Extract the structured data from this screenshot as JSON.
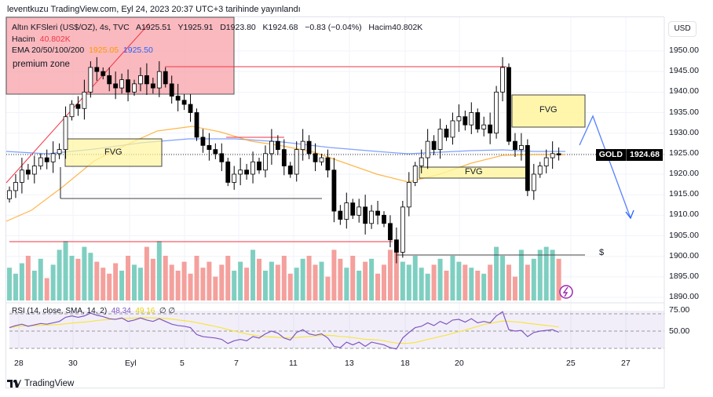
{
  "header": {
    "published": "leventkuzu TradingView.com, Eyl 24, 2023 20:37 UTC+3 tarihinde yayınlandı"
  },
  "legend": {
    "symbol": "Altın KFSleri (US$/OZ), 4s, TVC",
    "open": "A1925.51",
    "high": "Y1925.91",
    "low": "D1923.80",
    "close": "K1924.68",
    "change": "−0.83 (−0.04%)",
    "volume": "Hacim40.802K",
    "volume_label": "Hacim",
    "volume_value": "40.802K",
    "ema_label": "EMA 20/50/100/200",
    "ema_a": "1925.05",
    "ema_b": "1925.50",
    "rsi_label": "RSI (14, close, SMA, 14, 2)",
    "rsi_value": "48.34",
    "rsi_sma": "49.16",
    "rsi_extra": "∅ ∅"
  },
  "annotations": {
    "premium": "premium zone",
    "fvg1": "FVG",
    "fvg2": "FVG",
    "fvg3": "FVG",
    "dollar": "$"
  },
  "price_axis": {
    "currency": "USD",
    "labels": [
      "1950.00",
      "1945.00",
      "1940.00",
      "1935.00",
      "1930.00",
      "1925.00",
      "1920.00",
      "1915.00",
      "1910.00",
      "1905.00",
      "1900.00",
      "1895.00",
      "1890.00"
    ],
    "symbol_tag": "GOLD",
    "last_price": "1924.68"
  },
  "rsi_axis": {
    "labels": [
      "75.00",
      "50.00"
    ]
  },
  "date_axis": [
    "28",
    "30",
    "Eyl",
    "5",
    "7",
    "11",
    "13",
    "18",
    "20",
    "25",
    "27"
  ],
  "brand": "TradingView",
  "colors": {
    "up_vol": "#7fcfc1",
    "down_vol": "#f4a09c",
    "ema_orange": "#ff9800",
    "ema_blue": "#2962ff",
    "rsi": "#7e57c2",
    "rsi_sma": "#f5e642"
  },
  "chart_data": {
    "type": "candlestick",
    "timeframe": "4h",
    "first_open": 1914,
    "closes": [
      1916,
      1918,
      1921,
      1920,
      1922,
      1924,
      1923,
      1925,
      1926,
      1934,
      1937,
      1936,
      1940,
      1946,
      1945,
      1944,
      1942,
      1941,
      1943,
      1940,
      1942,
      1944,
      1942,
      1941,
      1945,
      1942,
      1939,
      1938,
      1937,
      1935,
      1929,
      1927,
      1926,
      1925,
      1923,
      1918,
      1920,
      1921,
      1920,
      1923,
      1921,
      1925,
      1928,
      1926,
      1922,
      1920,
      1926,
      1928,
      1925,
      1923,
      1924,
      1921,
      1911,
      1909,
      1913,
      1910,
      1912,
      1908,
      1911,
      1910,
      1908,
      1904,
      1901,
      1912,
      1918,
      1922,
      1924,
      1928,
      1926,
      1931,
      1929,
      1933,
      1934,
      1932,
      1935,
      1931,
      1932,
      1930,
      1940,
      1946,
      1928,
      1926,
      1927,
      1916,
      1920,
      1922,
      1924,
      1925,
      1924.68
    ],
    "volumes": [
      22,
      18,
      25,
      30,
      20,
      28,
      15,
      24,
      34,
      40,
      30,
      28,
      36,
      32,
      26,
      22,
      18,
      25,
      20,
      30,
      24,
      22,
      36,
      28,
      40,
      30,
      24,
      20,
      26,
      18,
      30,
      22,
      26,
      16,
      24,
      30,
      20,
      26,
      22,
      34,
      28,
      20,
      26,
      24,
      30,
      18,
      22,
      28,
      30,
      24,
      26,
      16,
      34,
      28,
      22,
      30,
      20,
      26,
      28,
      18,
      24,
      34,
      40,
      26,
      24,
      30,
      22,
      18,
      24,
      28,
      20,
      30,
      26,
      24,
      22,
      20,
      18,
      24,
      36,
      30,
      24,
      16,
      34,
      24,
      28,
      34,
      36,
      34,
      28
    ],
    "rsi": [
      55,
      58,
      60,
      57,
      59,
      61,
      60,
      62,
      64,
      70,
      72,
      70,
      72,
      76,
      73,
      71,
      68,
      67,
      69,
      64,
      66,
      69,
      66,
      64,
      68,
      64,
      60,
      58,
      57,
      55,
      45,
      42,
      41,
      40,
      38,
      32,
      36,
      38,
      36,
      42,
      40,
      46,
      50,
      47,
      40,
      37,
      48,
      52,
      46,
      44,
      46,
      40,
      28,
      26,
      34,
      30,
      34,
      28,
      34,
      32,
      30,
      26,
      24,
      40,
      48,
      55,
      57,
      62,
      58,
      64,
      60,
      66,
      67,
      63,
      68,
      62,
      64,
      62,
      72,
      78,
      52,
      50,
      51,
      42,
      48,
      50,
      51,
      52,
      48.34
    ],
    "ylim": [
      1888,
      1955
    ],
    "rsi_ylim": [
      25,
      75
    ]
  }
}
